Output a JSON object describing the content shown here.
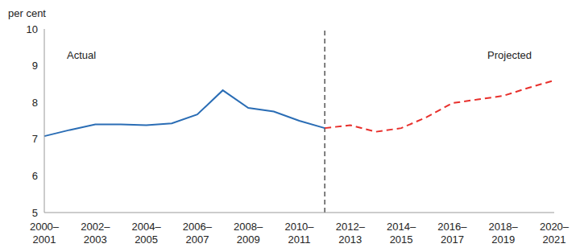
{
  "chart_data": {
    "type": "line",
    "y_label": "per cent",
    "categories": [
      "2000–2001",
      null,
      "2002–2003",
      null,
      "2004–2005",
      null,
      "2006–2007",
      null,
      "2008–2009",
      null,
      "2010–2011",
      null,
      "2012–2013",
      null,
      "2014–2015",
      null,
      "2016–2017",
      null,
      "2018–2019",
      null,
      "2020–2021"
    ],
    "series": [
      {
        "name": "Actual",
        "color": "#2a6db5",
        "line_style": "solid",
        "values": [
          7.08,
          7.25,
          7.4,
          7.4,
          7.38,
          7.43,
          7.67,
          8.33,
          7.85,
          7.75,
          7.5,
          7.3,
          null,
          null,
          null,
          null,
          null,
          null,
          null,
          null,
          null
        ]
      },
      {
        "name": "Projected",
        "color": "#e8302c",
        "line_style": "dashed",
        "values": [
          null,
          null,
          null,
          null,
          null,
          null,
          null,
          null,
          null,
          null,
          null,
          7.3,
          7.38,
          7.2,
          7.3,
          7.6,
          7.98,
          8.08,
          8.18,
          8.4,
          8.6
        ]
      }
    ],
    "ylim": [
      5,
      10
    ],
    "yticks": [
      5,
      6,
      7,
      8,
      9,
      10
    ],
    "grid": false
  }
}
